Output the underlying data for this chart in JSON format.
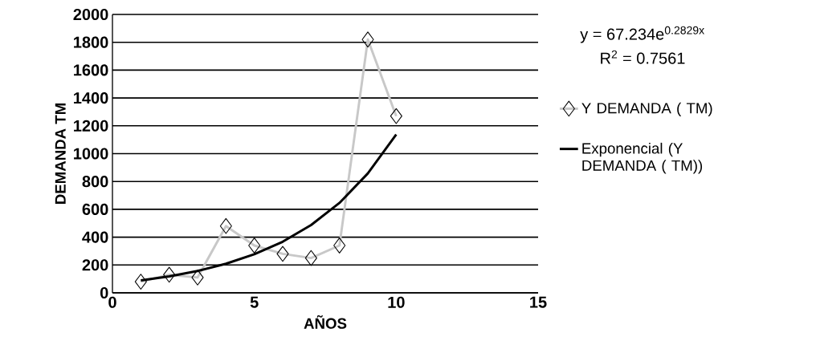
{
  "chart_data": {
    "type": "line",
    "xlabel": "AÑOS",
    "ylabel": "DEMANDA TM",
    "x": [
      1,
      2,
      3,
      4,
      5,
      6,
      7,
      8,
      9,
      10
    ],
    "series": [
      {
        "name": "Y  DEMANDA ( TM)",
        "color": "#c8c8c8",
        "marker": "diamond",
        "values": [
          80,
          130,
          110,
          480,
          340,
          280,
          250,
          340,
          1820,
          1270
        ]
      },
      {
        "name": "Exponencial (Y DEMANDA ( TM))",
        "color": "#000000",
        "marker": "none",
        "values": [
          89,
          118,
          157,
          209,
          277,
          367,
          487,
          646,
          858,
          1138
        ]
      }
    ],
    "xlim": [
      0,
      15
    ],
    "xticks": [
      0,
      5,
      10,
      15
    ],
    "ylim": [
      0,
      2000
    ],
    "yticks": [
      0,
      200,
      400,
      600,
      800,
      1000,
      1200,
      1400,
      1600,
      1800,
      2000
    ],
    "grid": "y",
    "legend": "right",
    "annotations": [
      "y = 67.234e$^{0.2829x}$",
      "R$^{2}$ = 0.7561"
    ]
  }
}
